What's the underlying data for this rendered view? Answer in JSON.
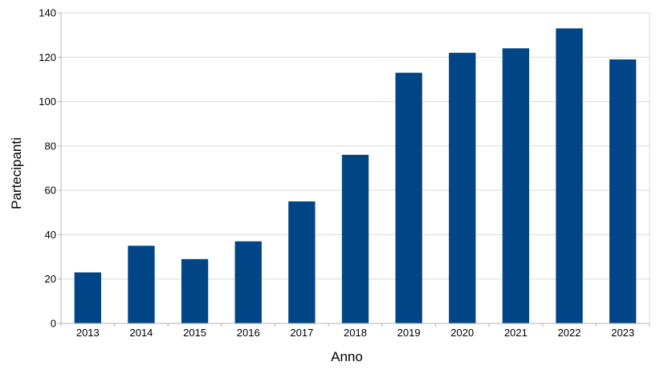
{
  "chart_data": {
    "type": "bar",
    "title": "",
    "xlabel": "Anno",
    "ylabel": "Partecipanti",
    "categories": [
      "2013",
      "2014",
      "2015",
      "2016",
      "2017",
      "2018",
      "2019",
      "2020",
      "2021",
      "2022",
      "2023"
    ],
    "values": [
      23,
      35,
      29,
      37,
      55,
      76,
      113,
      122,
      124,
      133,
      119
    ],
    "ylim": [
      0,
      140
    ],
    "yticks": [
      0,
      20,
      40,
      60,
      80,
      100,
      120,
      140
    ],
    "grid": "horizontal",
    "legend": "none",
    "colors": {
      "bar": "#004586",
      "grid": "#d9d9d9",
      "axis": "#b3b3b3"
    }
  }
}
